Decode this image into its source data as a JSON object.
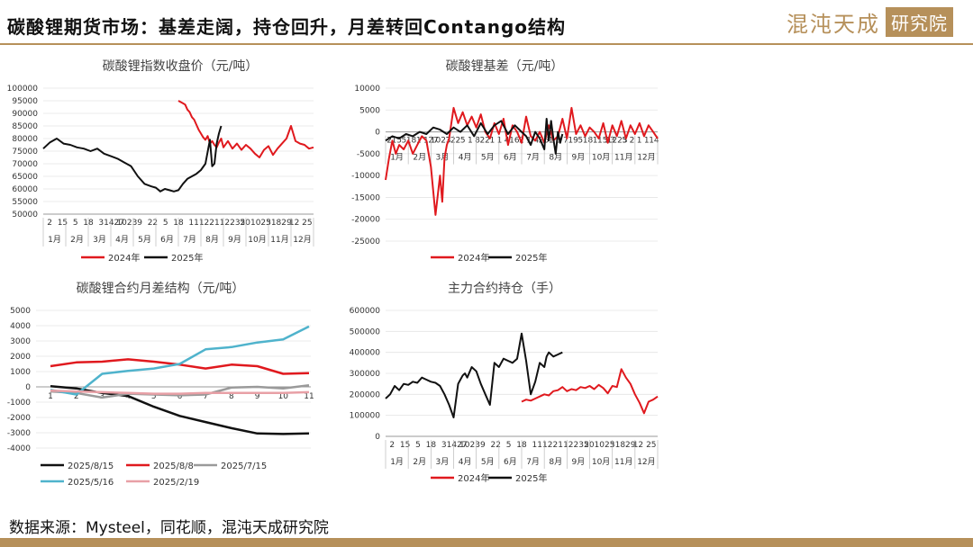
{
  "header": {
    "title": "碳酸锂期货市场：基差走阔，持仓回升，月差转回Contango结构",
    "brand_text": "混沌天成",
    "brand_box": "研究院"
  },
  "footer": {
    "source": "数据来源：Mysteel，同花顺，混沌天成研究院"
  },
  "colors": {
    "y2024": "#e0191e",
    "y2025": "#111111",
    "brand": "#b6905a",
    "teal": "#4fb3cc",
    "gray": "#9a9a9a"
  },
  "chart_data": [
    {
      "id": "price",
      "type": "line",
      "title": "碳酸锂指数收盘价（元/吨）",
      "ylim": [
        50000,
        100000
      ],
      "yticks": [
        100000,
        95000,
        90000,
        85000,
        80000,
        75000,
        70000,
        65000,
        60000,
        55000,
        50000
      ],
      "x_tick_labels": [
        "2",
        "15",
        "5",
        "18",
        "3",
        "1427",
        "1023",
        "9",
        "22",
        "5",
        "18",
        "1",
        "1122",
        "1",
        "1223",
        "5",
        "201023",
        "5",
        "1829",
        "12",
        "25"
      ],
      "months": [
        "1月",
        "2月",
        "3月",
        "4月",
        "5月",
        "6月",
        "7月",
        "8月",
        "9月",
        "10月",
        "11月",
        "12月"
      ],
      "series": [
        {
          "name": "2024年",
          "color": "#e0191e",
          "x": [
            6.0,
            6.1,
            6.2,
            6.3,
            6.4,
            6.5,
            6.6,
            6.7,
            6.8,
            6.9,
            7.0,
            7.1,
            7.2,
            7.3,
            7.4,
            7.5,
            7.6,
            7.7,
            7.8,
            7.9,
            8.0,
            8.2,
            8.4,
            8.6,
            8.8,
            9.0,
            9.2,
            9.4,
            9.6,
            9.8,
            10.0,
            10.2,
            10.4,
            10.6,
            10.8,
            11.0,
            11.2,
            11.4,
            11.6,
            11.8,
            12.0
          ],
          "y": [
            95000,
            94500,
            94000,
            93500,
            91500,
            90500,
            88500,
            87500,
            85500,
            83500,
            82000,
            80500,
            79500,
            81000,
            78000,
            79000,
            77500,
            76500,
            78500,
            80000,
            76500,
            79000,
            76000,
            78000,
            75500,
            77500,
            76000,
            74000,
            72500,
            75500,
            77000,
            73500,
            76000,
            78000,
            80000,
            85000,
            79000,
            78000,
            77500,
            76000,
            76500
          ]
        },
        {
          "name": "2025年",
          "color": "#111111",
          "x": [
            0.0,
            0.3,
            0.6,
            0.9,
            1.2,
            1.5,
            1.8,
            2.1,
            2.4,
            2.7,
            3.0,
            3.3,
            3.6,
            3.9,
            4.2,
            4.5,
            4.8,
            5.0,
            5.2,
            5.4,
            5.6,
            5.8,
            6.0,
            6.2,
            6.4,
            6.6,
            6.8,
            7.0,
            7.2,
            7.4,
            7.5,
            7.6,
            7.7,
            7.8,
            7.9
          ],
          "y": [
            76000,
            78500,
            80000,
            78000,
            77500,
            76500,
            76000,
            75000,
            76000,
            74000,
            73000,
            72000,
            70500,
            69000,
            65000,
            62000,
            61000,
            60500,
            59000,
            60000,
            59500,
            59000,
            59500,
            62000,
            64000,
            65000,
            66000,
            67500,
            70000,
            79500,
            69000,
            70000,
            78000,
            82000,
            85000
          ]
        }
      ]
    },
    {
      "id": "basis",
      "type": "line",
      "title": "碳酸锂基差（元/吨）",
      "ylim": [
        -25000,
        10000
      ],
      "yticks": [
        10000,
        5000,
        0,
        -5000,
        -10000,
        -15000,
        -20000,
        -25000
      ],
      "x_tick_labels": [
        "2",
        "15",
        "5",
        "18",
        "1",
        "1",
        "27",
        "1023",
        "7",
        "22",
        "5",
        "1",
        "8",
        "22",
        "1",
        "1",
        "4",
        "16",
        "2",
        "1",
        "4",
        "26",
        "1",
        "3",
        "7",
        "19",
        "5",
        "18",
        "1",
        "15",
        "13",
        "1223",
        "5",
        "2",
        "1",
        "1",
        "14"
      ],
      "months": [
        "1月",
        "2月",
        "3月",
        "4月",
        "5月",
        "6月",
        "7月",
        "8月",
        "9月",
        "10月",
        "11月",
        "12月"
      ],
      "series": [
        {
          "name": "2024年",
          "color": "#e0191e",
          "x": [
            0.0,
            0.15,
            0.3,
            0.45,
            0.6,
            0.8,
            1.0,
            1.2,
            1.4,
            1.6,
            1.8,
            2.0,
            2.2,
            2.4,
            2.5,
            2.6,
            2.7,
            2.8,
            3.0,
            3.2,
            3.4,
            3.6,
            3.8,
            4.0,
            4.2,
            4.4,
            4.6,
            4.8,
            5.0,
            5.2,
            5.4,
            5.6,
            5.8,
            6.0,
            6.2,
            6.4,
            6.6,
            6.8,
            7.0,
            7.2,
            7.4,
            7.6,
            7.8,
            8.0,
            8.2,
            8.4,
            8.6,
            8.8,
            9.0,
            9.2,
            9.4,
            9.6,
            9.8,
            10.0,
            10.2,
            10.4,
            10.6,
            10.8,
            11.0,
            11.2,
            11.4,
            11.6,
            11.8,
            12.0
          ],
          "y": [
            -11000,
            -6000,
            -2000,
            -5000,
            -3000,
            -4000,
            -2000,
            -5000,
            -3000,
            -1000,
            -2000,
            -8000,
            -19000,
            -10000,
            -16000,
            -6000,
            -3000,
            -1500,
            5500,
            2000,
            4500,
            1500,
            3500,
            1000,
            4000,
            0,
            -1500,
            2000,
            -500,
            3000,
            -3000,
            1500,
            0,
            -2500,
            3500,
            -1000,
            -2000,
            0,
            -2500,
            1500,
            -2000,
            -1000,
            3000,
            -1500,
            5500,
            -500,
            1500,
            -1000,
            1000,
            0,
            -1500,
            2000,
            -2500,
            1500,
            -1000,
            2500,
            -1500,
            1500,
            -500,
            2000,
            -1000,
            1500,
            0,
            -1500
          ]
        },
        {
          "name": "2025年",
          "color": "#111111",
          "x": [
            0.0,
            0.3,
            0.6,
            0.9,
            1.2,
            1.5,
            1.8,
            2.1,
            2.4,
            2.7,
            3.0,
            3.3,
            3.6,
            3.9,
            4.2,
            4.5,
            4.8,
            5.1,
            5.4,
            5.7,
            6.0,
            6.2,
            6.4,
            6.6,
            6.8,
            7.0,
            7.1,
            7.2,
            7.3,
            7.4,
            7.5,
            7.6,
            7.7,
            7.8
          ],
          "y": [
            -2000,
            -1000,
            -1500,
            -500,
            -1000,
            0,
            -500,
            1000,
            500,
            -500,
            1000,
            0,
            1500,
            -1000,
            2000,
            -500,
            1500,
            2500,
            -500,
            1500,
            0,
            -1000,
            -3000,
            0,
            -1500,
            -4000,
            3000,
            -2000,
            2500,
            -1500,
            -5000,
            0,
            -2500,
            -500
          ]
        }
      ]
    },
    {
      "id": "spread",
      "type": "line",
      "title": "碳酸锂合约月差结构（元/吨）",
      "ylim": [
        -4000,
        5000
      ],
      "yticks": [
        5000,
        4000,
        3000,
        2000,
        1000,
        0,
        -1000,
        -2000,
        -3000,
        -4000
      ],
      "categories": [
        "1",
        "2",
        "3",
        "4",
        "5",
        "6",
        "7",
        "8",
        "9",
        "10",
        "11"
      ],
      "series": [
        {
          "name": "2025/8/15",
          "color": "#111111",
          "values": [
            50,
            -100,
            -400,
            -600,
            -1300,
            -1900,
            -2300,
            -2700,
            -3050,
            -3080,
            -3050
          ]
        },
        {
          "name": "2025/8/8",
          "color": "#e0191e",
          "values": [
            1350,
            1600,
            1650,
            1800,
            1650,
            1450,
            1200,
            1450,
            1350,
            850,
            900
          ]
        },
        {
          "name": "2025/7/15",
          "color": "#9a9a9a",
          "values": [
            -300,
            -400,
            -700,
            -450,
            -500,
            -550,
            -500,
            -50,
            0,
            -100,
            100
          ]
        },
        {
          "name": "2025/5/16",
          "color": "#4fb3cc",
          "values": [
            -200,
            -500,
            850,
            1050,
            1200,
            1500,
            2450,
            2600,
            2900,
            3100,
            3950
          ]
        },
        {
          "name": "2025/2/19",
          "color": "#e8a0a6",
          "values": [
            -250,
            -300,
            -350,
            -400,
            -450,
            -450,
            -400,
            -400,
            -400,
            -400,
            -350
          ]
        }
      ]
    },
    {
      "id": "oi",
      "type": "line",
      "title": "主力合约持仓（手）",
      "ylim": [
        0,
        600000
      ],
      "yticks": [
        600000,
        500000,
        400000,
        300000,
        200000,
        100000,
        0
      ],
      "x_tick_labels": [
        "2",
        "15",
        "5",
        "18",
        "3",
        "1427",
        "1023",
        "9",
        "22",
        "5",
        "18",
        "1",
        "1122",
        "1",
        "1223",
        "5",
        "201023",
        "5",
        "1829",
        "12",
        "25"
      ],
      "months": [
        "1月",
        "2月",
        "3月",
        "4月",
        "5月",
        "6月",
        "7月",
        "8月",
        "9月",
        "10月",
        "11月",
        "12月"
      ],
      "series": [
        {
          "name": "2024年",
          "color": "#e0191e",
          "x": [
            6.0,
            6.2,
            6.4,
            6.6,
            6.8,
            7.0,
            7.2,
            7.4,
            7.6,
            7.8,
            8.0,
            8.2,
            8.4,
            8.6,
            8.8,
            9.0,
            9.2,
            9.4,
            9.6,
            9.8,
            10.0,
            10.2,
            10.4,
            10.6,
            10.8,
            11.0,
            11.2,
            11.4,
            11.6,
            11.8,
            12.0
          ],
          "y": [
            165000,
            175000,
            170000,
            180000,
            190000,
            200000,
            195000,
            215000,
            220000,
            235000,
            215000,
            225000,
            220000,
            235000,
            230000,
            240000,
            225000,
            245000,
            230000,
            205000,
            240000,
            235000,
            320000,
            280000,
            250000,
            200000,
            160000,
            110000,
            165000,
            175000,
            190000
          ]
        },
        {
          "name": "2025年",
          "color": "#111111",
          "x": [
            0.0,
            0.2,
            0.4,
            0.6,
            0.8,
            1.0,
            1.2,
            1.4,
            1.6,
            1.8,
            2.0,
            2.2,
            2.4,
            2.6,
            2.8,
            3.0,
            3.2,
            3.4,
            3.5,
            3.6,
            3.8,
            4.0,
            4.2,
            4.4,
            4.6,
            4.8,
            5.0,
            5.2,
            5.4,
            5.6,
            5.8,
            6.0,
            6.2,
            6.4,
            6.6,
            6.8,
            7.0,
            7.1,
            7.2,
            7.4,
            7.6,
            7.8
          ],
          "y": [
            180000,
            200000,
            240000,
            220000,
            250000,
            245000,
            260000,
            255000,
            280000,
            270000,
            260000,
            255000,
            240000,
            200000,
            150000,
            90000,
            250000,
            290000,
            300000,
            280000,
            330000,
            310000,
            250000,
            200000,
            150000,
            350000,
            330000,
            370000,
            360000,
            350000,
            370000,
            490000,
            360000,
            200000,
            260000,
            350000,
            330000,
            380000,
            400000,
            380000,
            390000,
            400000
          ]
        }
      ]
    }
  ]
}
